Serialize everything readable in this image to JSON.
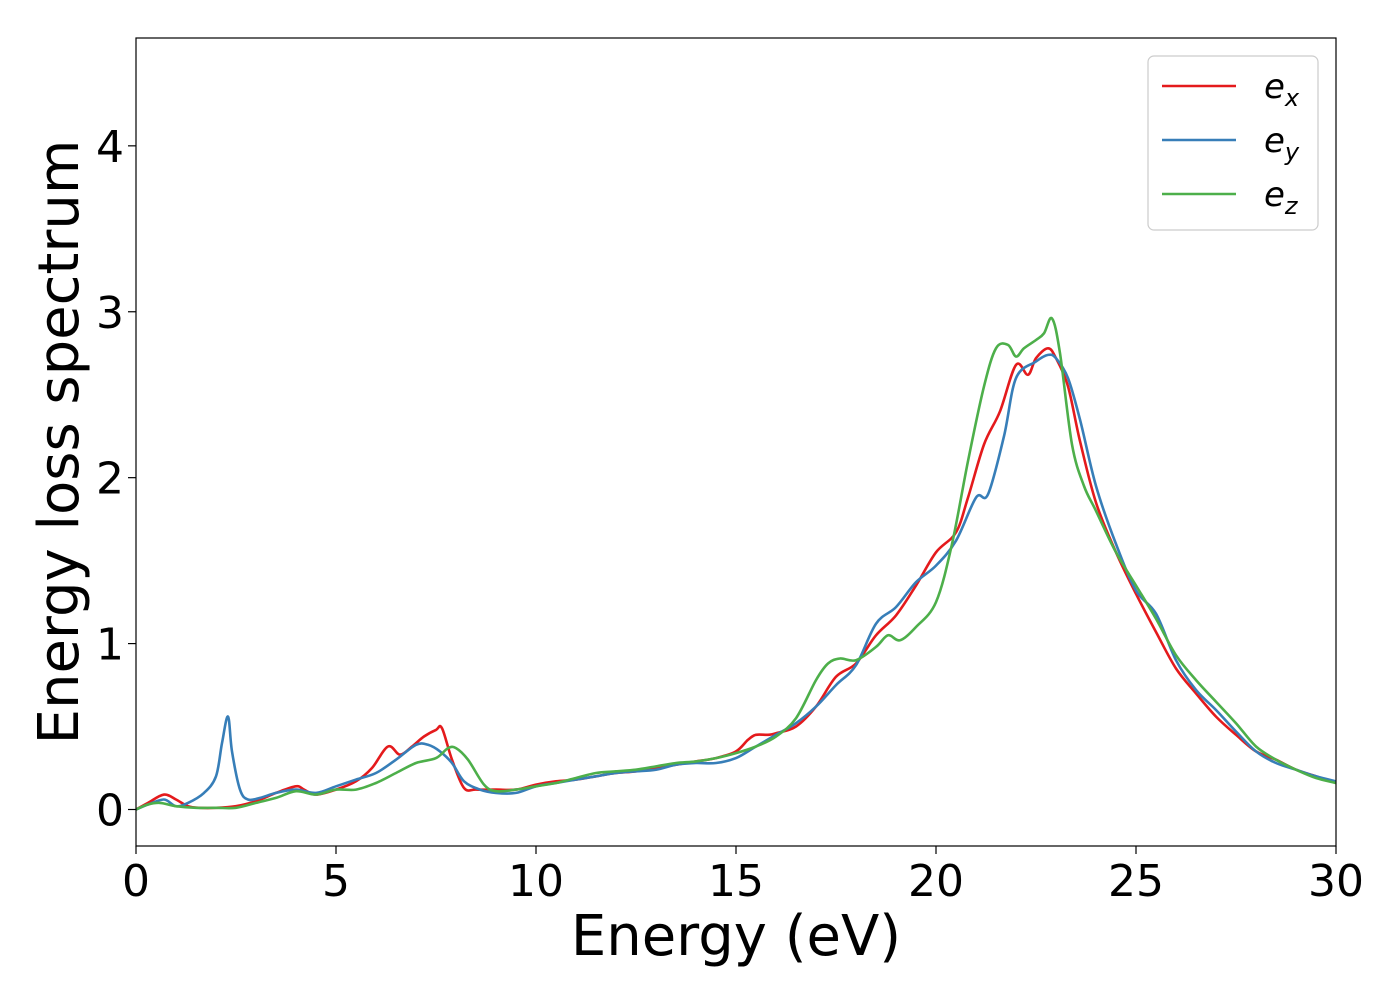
{
  "chart_data": {
    "type": "line",
    "title": "",
    "xlabel": "Energy (eV)",
    "ylabel": "Energy loss spectrum",
    "xlim": [
      0,
      30
    ],
    "ylim": [
      -0.22,
      4.65
    ],
    "xticks": [
      0,
      5,
      10,
      15,
      20,
      25,
      30
    ],
    "yticks": [
      0,
      1,
      2,
      3,
      4
    ],
    "grid": false,
    "legend_position": "top-right",
    "series": [
      {
        "name": "e_x",
        "legend_base": "e",
        "legend_sub": "x",
        "color": "#e41a1c",
        "x": [
          0,
          0.3,
          0.7,
          1.0,
          1.3,
          1.6,
          2.0,
          2.5,
          3.0,
          3.5,
          4.0,
          4.2,
          4.5,
          5.0,
          5.5,
          5.9,
          6.3,
          6.6,
          6.9,
          7.2,
          7.5,
          7.65,
          7.9,
          8.2,
          8.5,
          9.0,
          9.5,
          10.0,
          10.5,
          11.0,
          11.5,
          12.0,
          12.5,
          13.0,
          13.5,
          14.0,
          14.5,
          15.0,
          15.3,
          15.5,
          15.8,
          16.0,
          16.5,
          17.0,
          17.5,
          18.0,
          18.5,
          19.0,
          19.5,
          20.0,
          20.5,
          20.8,
          21.2,
          21.6,
          22.0,
          22.3,
          22.5,
          22.8,
          23.0,
          23.3,
          23.6,
          24.0,
          24.5,
          25.0,
          25.5,
          26.0,
          26.5,
          27.0,
          27.5,
          28.0,
          28.5,
          29.0,
          29.5,
          30.0
        ],
        "y": [
          0,
          0.04,
          0.09,
          0.06,
          0.02,
          0.01,
          0.01,
          0.02,
          0.05,
          0.1,
          0.14,
          0.12,
          0.09,
          0.12,
          0.17,
          0.25,
          0.38,
          0.33,
          0.38,
          0.44,
          0.48,
          0.49,
          0.3,
          0.13,
          0.12,
          0.12,
          0.12,
          0.15,
          0.17,
          0.18,
          0.2,
          0.22,
          0.23,
          0.25,
          0.27,
          0.29,
          0.31,
          0.35,
          0.42,
          0.45,
          0.45,
          0.46,
          0.5,
          0.62,
          0.8,
          0.88,
          1.05,
          1.17,
          1.35,
          1.55,
          1.67,
          1.88,
          2.2,
          2.4,
          2.68,
          2.62,
          2.72,
          2.78,
          2.72,
          2.55,
          2.22,
          1.85,
          1.55,
          1.3,
          1.07,
          0.85,
          0.7,
          0.56,
          0.45,
          0.35,
          0.3,
          0.24,
          0.2,
          0.16
        ]
      },
      {
        "name": "e_y",
        "legend_base": "e",
        "legend_sub": "y",
        "color": "#377eb8",
        "x": [
          0,
          0.3,
          0.7,
          1.0,
          1.3,
          1.7,
          2.0,
          2.15,
          2.3,
          2.4,
          2.6,
          2.8,
          3.1,
          3.5,
          4.0,
          4.5,
          5.0,
          5.5,
          6.0,
          6.5,
          7.0,
          7.3,
          7.6,
          7.9,
          8.2,
          8.6,
          9.0,
          9.5,
          10.0,
          10.5,
          11.0,
          11.5,
          12.0,
          12.5,
          13.0,
          13.5,
          14.0,
          14.5,
          15.0,
          15.5,
          16.0,
          16.5,
          17.0,
          17.5,
          18.0,
          18.5,
          19.0,
          19.5,
          20.0,
          20.5,
          21.0,
          21.3,
          21.7,
          22.0,
          22.5,
          22.8,
          23.0,
          23.3,
          23.6,
          24.0,
          24.5,
          25.0,
          25.5,
          26.0,
          26.5,
          27.0,
          27.5,
          28.0,
          28.5,
          29.0,
          29.5,
          30.0
        ],
        "y": [
          0,
          0.03,
          0.06,
          0.02,
          0.04,
          0.1,
          0.2,
          0.4,
          0.56,
          0.35,
          0.12,
          0.06,
          0.07,
          0.1,
          0.12,
          0.1,
          0.14,
          0.18,
          0.22,
          0.3,
          0.39,
          0.39,
          0.35,
          0.28,
          0.17,
          0.12,
          0.1,
          0.1,
          0.14,
          0.16,
          0.18,
          0.2,
          0.22,
          0.23,
          0.24,
          0.27,
          0.28,
          0.28,
          0.31,
          0.38,
          0.45,
          0.52,
          0.62,
          0.75,
          0.87,
          1.12,
          1.22,
          1.37,
          1.47,
          1.62,
          1.88,
          1.9,
          2.25,
          2.6,
          2.7,
          2.74,
          2.72,
          2.6,
          2.35,
          1.95,
          1.6,
          1.32,
          1.18,
          0.9,
          0.72,
          0.6,
          0.47,
          0.35,
          0.28,
          0.24,
          0.2,
          0.17
        ]
      },
      {
        "name": "e_z",
        "legend_base": "e",
        "legend_sub": "z",
        "color": "#4daf4a",
        "x": [
          0,
          0.3,
          0.6,
          1.0,
          1.5,
          2.0,
          2.5,
          3.0,
          3.5,
          4.0,
          4.5,
          5.0,
          5.5,
          6.0,
          6.5,
          7.0,
          7.5,
          7.8,
          8.0,
          8.3,
          8.7,
          9.0,
          9.5,
          10.0,
          10.5,
          11.0,
          11.5,
          12.0,
          12.5,
          13.0,
          13.5,
          14.0,
          14.5,
          15.0,
          15.5,
          16.0,
          16.5,
          17.0,
          17.3,
          17.6,
          18.0,
          18.5,
          18.8,
          19.1,
          19.5,
          20.0,
          20.4,
          20.8,
          21.2,
          21.5,
          21.8,
          22.0,
          22.2,
          22.5,
          22.7,
          22.9,
          23.1,
          23.4,
          23.7,
          24.0,
          24.5,
          25.0,
          25.5,
          26.0,
          26.5,
          27.0,
          27.5,
          28.0,
          28.5,
          29.0,
          29.5,
          30.0
        ],
        "y": [
          0,
          0.03,
          0.04,
          0.02,
          0.01,
          0.01,
          0.01,
          0.04,
          0.07,
          0.11,
          0.09,
          0.12,
          0.12,
          0.16,
          0.22,
          0.28,
          0.31,
          0.37,
          0.37,
          0.3,
          0.15,
          0.11,
          0.12,
          0.14,
          0.16,
          0.19,
          0.22,
          0.23,
          0.24,
          0.26,
          0.28,
          0.29,
          0.31,
          0.34,
          0.38,
          0.44,
          0.55,
          0.78,
          0.88,
          0.91,
          0.9,
          0.98,
          1.05,
          1.02,
          1.1,
          1.25,
          1.6,
          2.1,
          2.55,
          2.78,
          2.8,
          2.73,
          2.78,
          2.83,
          2.87,
          2.96,
          2.75,
          2.2,
          1.95,
          1.8,
          1.55,
          1.35,
          1.15,
          0.93,
          0.78,
          0.65,
          0.52,
          0.38,
          0.3,
          0.24,
          0.19,
          0.16
        ]
      }
    ]
  }
}
